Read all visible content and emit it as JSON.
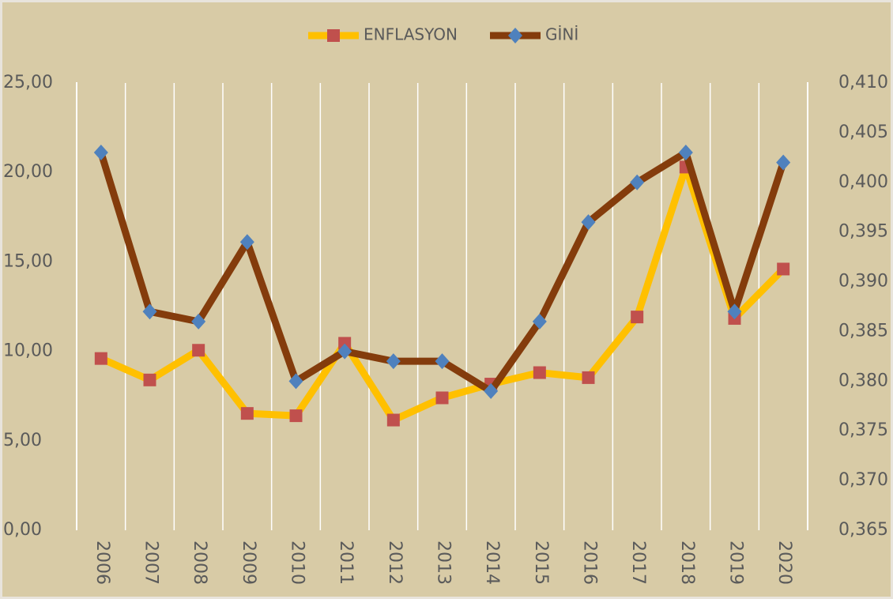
{
  "chart_data": {
    "type": "line",
    "categories": [
      "2006",
      "2007",
      "2008",
      "2009",
      "2010",
      "2011",
      "2012",
      "2013",
      "2014",
      "2015",
      "2016",
      "2017",
      "2018",
      "2019",
      "2020"
    ],
    "series": [
      {
        "name": "ENFLASYON",
        "color": "#ffc000",
        "marker_color": "#c0504d",
        "marker": "square",
        "values": [
          9.6,
          8.4,
          10.06,
          6.53,
          6.4,
          10.45,
          6.16,
          7.4,
          8.17,
          8.81,
          8.53,
          11.92,
          20.3,
          11.84,
          14.6
        ]
      },
      {
        "name": "GİNİ",
        "color": "#843c0c",
        "marker_color": "#4f81bd",
        "marker": "diamond",
        "axis": "y2",
        "values": [
          0.403,
          0.387,
          0.386,
          0.394,
          0.38,
          0.383,
          0.382,
          0.382,
          0.379,
          0.386,
          0.396,
          0.4,
          0.403,
          0.387,
          0.402
        ]
      }
    ],
    "ylim": [
      0,
      25
    ],
    "yticks": [
      {
        "value": 0,
        "label": "0,00"
      },
      {
        "value": 5,
        "label": "5,00"
      },
      {
        "value": 10,
        "label": "10,00"
      },
      {
        "value": 15,
        "label": "15,00"
      },
      {
        "value": 20,
        "label": "20,00"
      },
      {
        "value": 25,
        "label": "25,00"
      }
    ],
    "y2lim": [
      0.365,
      0.41
    ],
    "y2ticks": [
      {
        "value": 0.365,
        "label": "0,365"
      },
      {
        "value": 0.37,
        "label": "0,370"
      },
      {
        "value": 0.375,
        "label": "0,375"
      },
      {
        "value": 0.38,
        "label": "0,380"
      },
      {
        "value": 0.385,
        "label": "0,385"
      },
      {
        "value": 0.39,
        "label": "0,390"
      },
      {
        "value": 0.395,
        "label": "0,395"
      },
      {
        "value": 0.4,
        "label": "0,400"
      },
      {
        "value": 0.405,
        "label": "0,405"
      },
      {
        "value": 0.41,
        "label": "0,410"
      }
    ],
    "legend": "top"
  }
}
